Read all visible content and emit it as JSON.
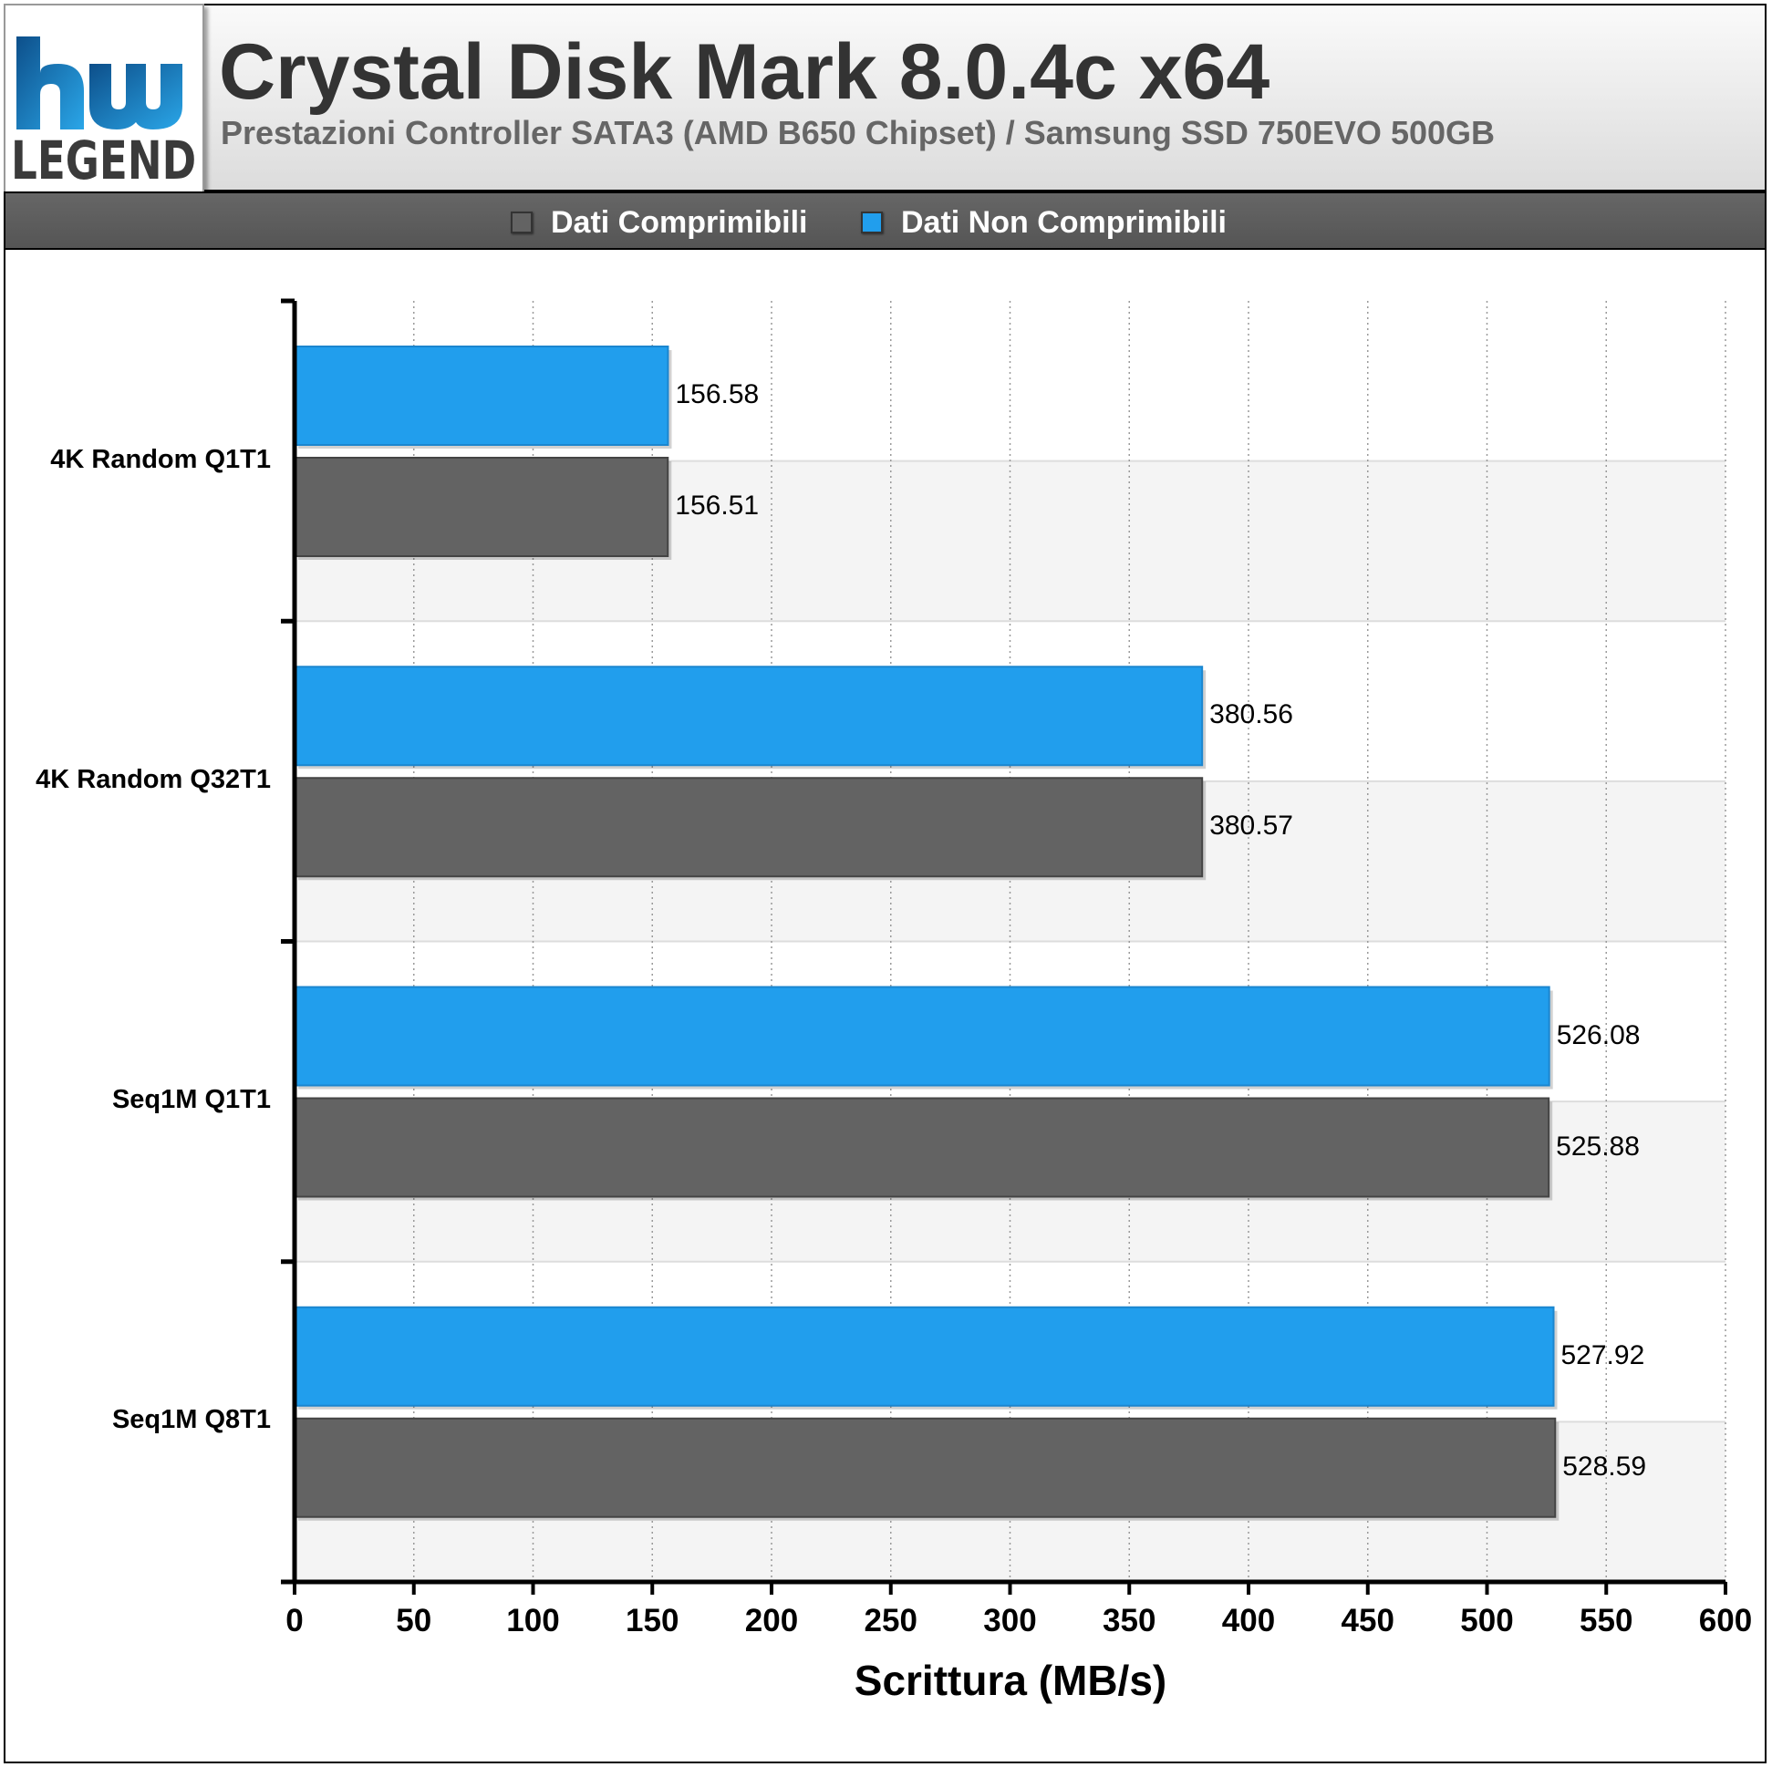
{
  "header": {
    "logo_text": "LEGEND",
    "title": "Crystal Disk Mark 8.0.4c x64",
    "subtitle": "Prestazioni Controller SATA3 (AMD B650 Chipset) / Samsung SSD 750EVO 500GB"
  },
  "legend": [
    {
      "label": "Dati Comprimibili",
      "color": "#636363"
    },
    {
      "label": "Dati Non Comprimibili",
      "color": "#219eed"
    }
  ],
  "chart_data": {
    "type": "bar",
    "orientation": "horizontal",
    "title": "Crystal Disk Mark 8.0.4c x64",
    "subtitle": "Prestazioni Controller SATA3 (AMD B650 Chipset) / Samsung SSD 750EVO 500GB",
    "xlabel": "Scrittura (MB/s)",
    "ylabel": "",
    "xlim": [
      0,
      600
    ],
    "xticks": [
      0,
      50,
      100,
      150,
      200,
      250,
      300,
      350,
      400,
      450,
      500,
      550,
      600
    ],
    "categories": [
      "4K Random Q1T1",
      "4K Random Q32T1",
      "Seq1M Q1T1",
      "Seq1M Q8T1"
    ],
    "series": [
      {
        "name": "Dati Non Comprimibili",
        "color": "#219eed",
        "values": [
          156.58,
          380.56,
          526.08,
          527.92
        ],
        "labels": [
          "156.58",
          "380.56",
          "526.08",
          "527.92"
        ]
      },
      {
        "name": "Dati Comprimibili",
        "color": "#636363",
        "values": [
          156.51,
          380.57,
          525.88,
          528.59
        ],
        "labels": [
          "156.51",
          "380.57",
          "525.88",
          "528.59"
        ]
      }
    ],
    "grid": true,
    "legend_position": "top"
  }
}
